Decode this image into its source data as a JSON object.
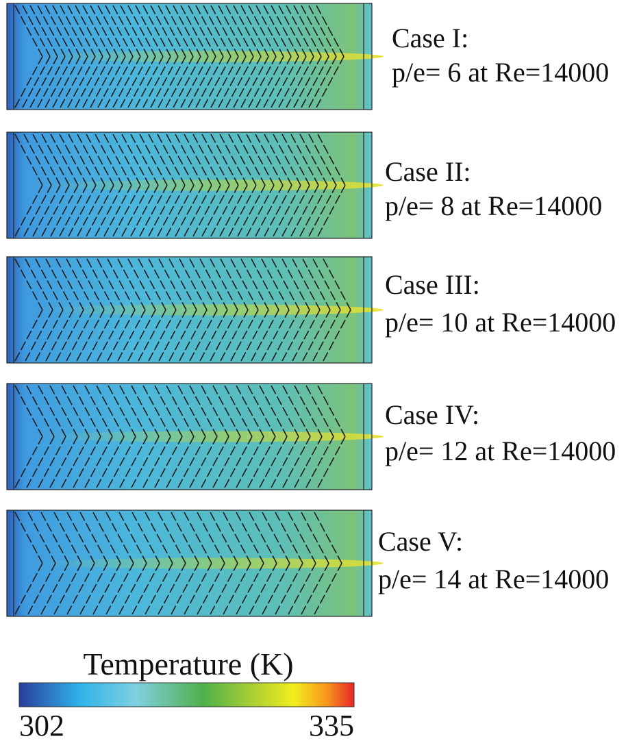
{
  "panels": [
    {
      "title": "Case I:",
      "subtitle": "p/e= 6 at Re=14000"
    },
    {
      "title": "Case II:",
      "subtitle": "p/e= 8 at Re=14000"
    },
    {
      "title": "Case III:",
      "subtitle": "p/e= 10 at Re=14000"
    },
    {
      "title": "Case IV:",
      "subtitle": "p/e= 12 at Re=14000"
    },
    {
      "title": "Case V:",
      "subtitle": "p/e= 14 at Re=14000"
    }
  ],
  "colorbar": {
    "title": "Temperature (K)",
    "min": 302,
    "max": 335
  }
}
